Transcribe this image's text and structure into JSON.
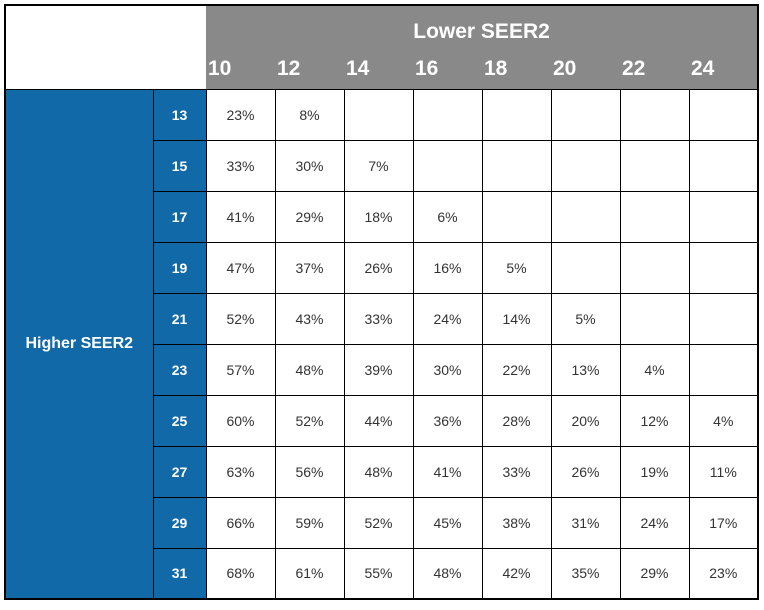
{
  "chart_data": {
    "type": "table",
    "column_group_title": "Lower SEER2",
    "row_group_title": "Higher SEER2",
    "column_headers": [
      "10",
      "12",
      "14",
      "16",
      "18",
      "20",
      "22",
      "24"
    ],
    "rows": [
      {
        "header": "13",
        "values": [
          "23%",
          "8%",
          "",
          "",
          "",
          "",
          "",
          ""
        ]
      },
      {
        "header": "15",
        "values": [
          "33%",
          "30%",
          "7%",
          "",
          "",
          "",
          "",
          ""
        ]
      },
      {
        "header": "17",
        "values": [
          "41%",
          "29%",
          "18%",
          "6%",
          "",
          "",
          "",
          ""
        ]
      },
      {
        "header": "19",
        "values": [
          "47%",
          "37%",
          "26%",
          "16%",
          "5%",
          "",
          "",
          ""
        ]
      },
      {
        "header": "21",
        "values": [
          "52%",
          "43%",
          "33%",
          "24%",
          "14%",
          "5%",
          "",
          ""
        ]
      },
      {
        "header": "23",
        "values": [
          "57%",
          "48%",
          "39%",
          "30%",
          "22%",
          "13%",
          "4%",
          ""
        ]
      },
      {
        "header": "25",
        "values": [
          "60%",
          "52%",
          "44%",
          "36%",
          "28%",
          "20%",
          "12%",
          "4%"
        ]
      },
      {
        "header": "27",
        "values": [
          "63%",
          "56%",
          "48%",
          "41%",
          "33%",
          "26%",
          "19%",
          "11%"
        ]
      },
      {
        "header": "29",
        "values": [
          "66%",
          "59%",
          "52%",
          "45%",
          "38%",
          "31%",
          "24%",
          "17%"
        ]
      },
      {
        "header": "31",
        "values": [
          "68%",
          "61%",
          "55%",
          "48%",
          "42%",
          "35%",
          "29%",
          "23%"
        ]
      }
    ]
  },
  "colors": {
    "accent_blue": "#1269A8",
    "header_gray": "#898989",
    "grid_border": "#000000",
    "value_text": "#333333",
    "header_text": "#FFFFFF"
  }
}
